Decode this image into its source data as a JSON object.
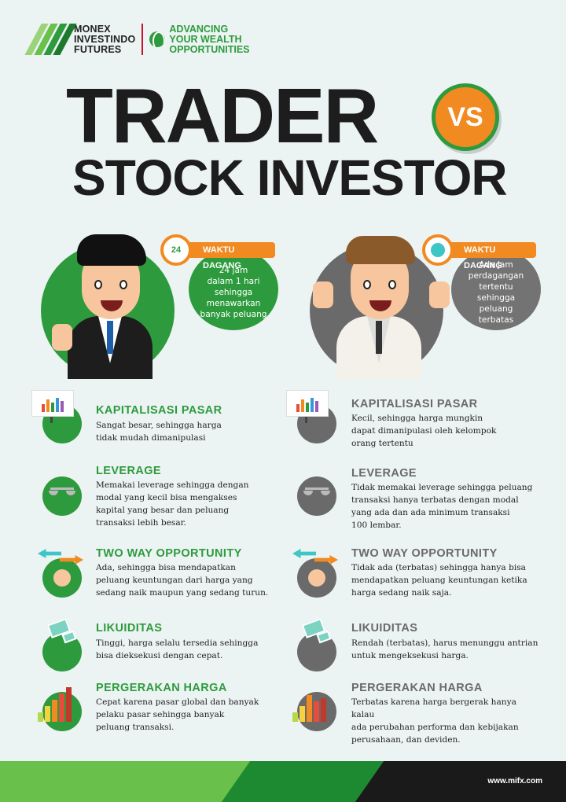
{
  "header": {
    "brand_lines": [
      "MONEX",
      "INVESTINDO",
      "FUTURES"
    ],
    "tagline_lines": [
      "ADVANCING",
      "YOUR WEALTH",
      "OPPORTUNITIES"
    ],
    "title_line1": "TRADER",
    "vs": "VS",
    "title_line2": "STOCK INVESTOR"
  },
  "trader": {
    "waktu_label": "WAKTU DAGANG",
    "clock_text": "24",
    "waktu_lines": [
      "24 jam",
      "dalam 1 hari",
      "sehingga",
      "menawarkan",
      "banyak peluang"
    ]
  },
  "investor": {
    "waktu_label": "WAKTU DAGANG",
    "waktu_lines": [
      "Ada jam",
      "perdagangan",
      "tertentu",
      "sehingga peluang",
      "terbatas"
    ]
  },
  "features": [
    {
      "left_title": "KAPITALISASI PASAR",
      "left_lines": [
        "Sangat besar, sehingga harga",
        "tidak mudah dimanipulasi"
      ],
      "right_title": "KAPITALISASI PASAR",
      "right_lines": [
        "Kecil, sehingga harga mungkin",
        "dapat dimanipulasi oleh kelompok",
        "orang tertentu"
      ]
    },
    {
      "left_title": "LEVERAGE",
      "left_lines": [
        "Memakai leverage sehingga dengan",
        "modal yang kecil bisa mengakses",
        "kapital yang besar dan peluang",
        "transaksi lebih besar."
      ],
      "right_title": "LEVERAGE",
      "right_lines": [
        "Tidak memakai leverage sehingga peluang",
        "transaksi hanya terbatas dengan modal",
        "yang ada dan ada minimum transaksi",
        "100 lembar."
      ]
    },
    {
      "left_title": "TWO WAY OPPORTUNITY",
      "left_lines": [
        "Ada, sehingga bisa mendapatkan",
        "peluang keuntungan dari harga yang",
        "sedang naik maupun yang sedang turun."
      ],
      "right_title": "TWO WAY OPPORTUNITY",
      "right_lines": [
        "Tidak ada (terbatas) sehingga hanya bisa",
        "mendapatkan peluang keuntungan ketika",
        "harga sedang naik saja."
      ]
    },
    {
      "left_title": "LIKUIDITAS",
      "left_lines": [
        "Tinggi, harga selalu tersedia sehingga",
        "bisa dieksekusi dengan cepat."
      ],
      "right_title": "LIKUIDITAS",
      "right_lines": [
        "Rendah (terbatas), harus menunggu antrian",
        "untuk mengeksekusi harga."
      ]
    },
    {
      "left_title": "PERGERAKAN HARGA",
      "left_lines": [
        "Cepat karena pasar global dan banyak",
        "pelaku pasar sehingga banyak",
        "peluang transaksi."
      ],
      "right_title": "PERGERAKAN HARGA",
      "right_lines": [
        "Terbatas karena harga bergerak hanya kalau",
        "ada perubahan performa dan kebijakan",
        "perusahaan, dan deviden."
      ]
    }
  ],
  "footer": {
    "url": "www.mifx.com"
  },
  "colors": {
    "green": "#2d9b3d",
    "orange": "#f18a21",
    "grey": "#6a6a6a",
    "dark": "#1d1d1d"
  }
}
